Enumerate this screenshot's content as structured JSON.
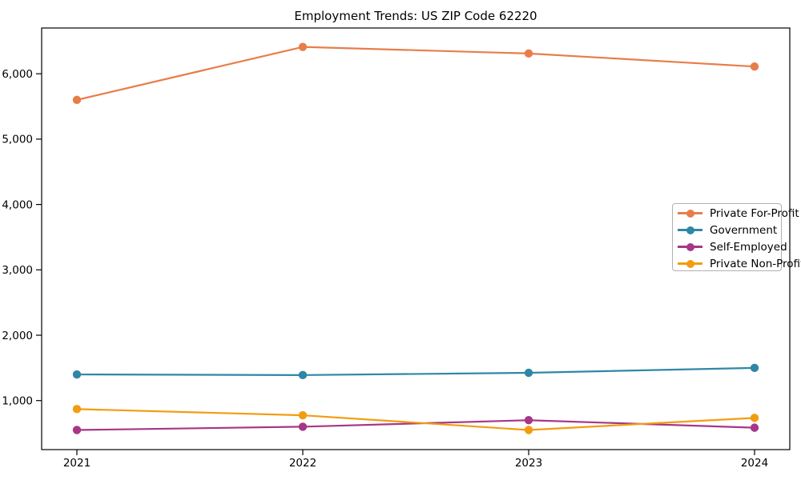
{
  "chart_data": {
    "type": "line",
    "title": "Employment Trends: US ZIP Code 62220",
    "x_labels": [
      "2021",
      "2022",
      "2023",
      "2024"
    ],
    "series": [
      {
        "name": "Private For-Profit",
        "color": "#E87D4A",
        "values": [
          5600,
          6410,
          6310,
          6110
        ]
      },
      {
        "name": "Government",
        "color": "#2F87A7",
        "values": [
          1400,
          1390,
          1425,
          1500
        ]
      },
      {
        "name": "Self-Employed",
        "color": "#A63786",
        "values": [
          550,
          600,
          700,
          585
        ]
      },
      {
        "name": "Private Non-Profit",
        "color": "#F39C12",
        "values": [
          870,
          775,
          550,
          735
        ]
      }
    ],
    "ylim": [
      250,
      6700
    ],
    "yticks": [
      1000,
      2000,
      3000,
      4000,
      5000,
      6000
    ],
    "ytick_labels": [
      "1,000",
      "2,000",
      "3,000",
      "4,000",
      "5,000",
      "6,000"
    ],
    "grid": false,
    "legend_position": "center-right",
    "axis_color": "#000000",
    "background_color": "#ffffff"
  }
}
